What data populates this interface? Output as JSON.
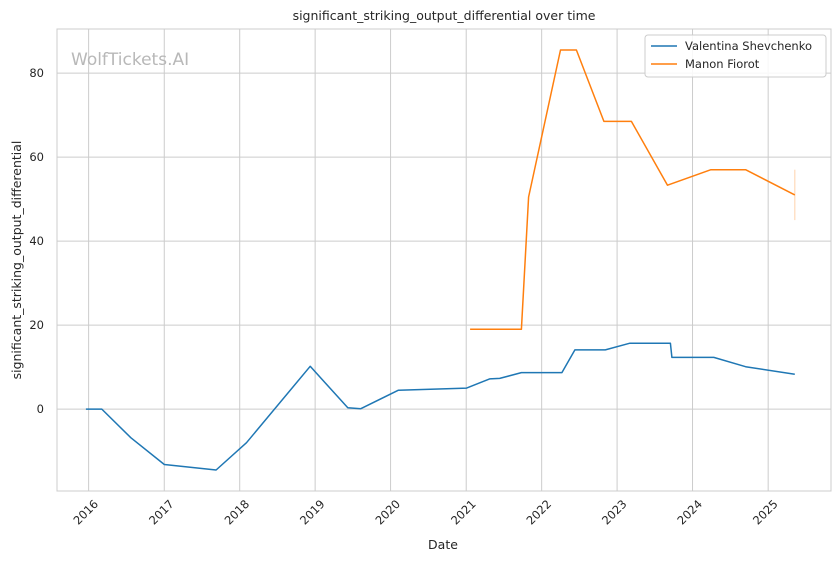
{
  "chart_data": {
    "type": "line",
    "title": "significant_striking_output_differential over time",
    "xlabel": "Date",
    "ylabel": "significant_striking_output_differential",
    "watermark": "WolfTickets.AI",
    "x_ticks": [
      "2016",
      "2017",
      "2018",
      "2019",
      "2020",
      "2021",
      "2022",
      "2023",
      "2024",
      "2025"
    ],
    "y_ticks": [
      0,
      20,
      40,
      60,
      80
    ],
    "xlim": [
      "2015-08-01",
      "2025-11-01"
    ],
    "ylim": [
      -19.5,
      90.5
    ],
    "grid": true,
    "legend_position": "top-right",
    "series": [
      {
        "name": "Valentina Shevchenko",
        "color": "#1f77b4",
        "points": [
          [
            "2015-12-19",
            0
          ],
          [
            "2016-03-05",
            0
          ],
          [
            "2016-07-23",
            -6.8
          ],
          [
            "2017-01-01",
            -13.2
          ],
          [
            "2017-09-09",
            -14.5
          ],
          [
            "2018-02-03",
            -8.0
          ],
          [
            "2018-12-08",
            10.2
          ],
          [
            "2019-06-08",
            0.3
          ],
          [
            "2019-08-10",
            0.1
          ],
          [
            "2020-02-08",
            4.5
          ],
          [
            "2021-01-03",
            5.0
          ],
          [
            "2021-04-24",
            7.2
          ],
          [
            "2021-06-12",
            7.3
          ],
          [
            "2021-09-25",
            8.7
          ],
          [
            "2022-04-09",
            8.7
          ],
          [
            "2022-06-11",
            14.1
          ],
          [
            "2022-11-05",
            14.1
          ],
          [
            "2023-03-04",
            15.7
          ],
          [
            "2023-09-16",
            15.7
          ],
          [
            "2023-09-23",
            12.3
          ],
          [
            "2024-04-13",
            12.3
          ],
          [
            "2024-09-14",
            10.1
          ],
          [
            "2025-05-10",
            8.3
          ]
        ]
      },
      {
        "name": "Manon Fiorot",
        "color": "#ff7f0e",
        "points": [
          [
            "2021-01-20",
            19.0
          ],
          [
            "2021-09-25",
            19.0
          ],
          [
            "2021-10-30",
            50.5
          ],
          [
            "2022-04-02",
            85.5
          ],
          [
            "2022-06-18",
            85.5
          ],
          [
            "2022-10-29",
            68.5
          ],
          [
            "2023-03-11",
            68.5
          ],
          [
            "2023-09-02",
            53.3
          ],
          [
            "2024-03-30",
            57.0
          ],
          [
            "2024-09-14",
            57.0
          ],
          [
            "2025-05-10",
            51.0
          ]
        ],
        "error_bar": {
          "x": "2025-05-10",
          "low": 45.0,
          "high": 57.0
        }
      }
    ]
  }
}
